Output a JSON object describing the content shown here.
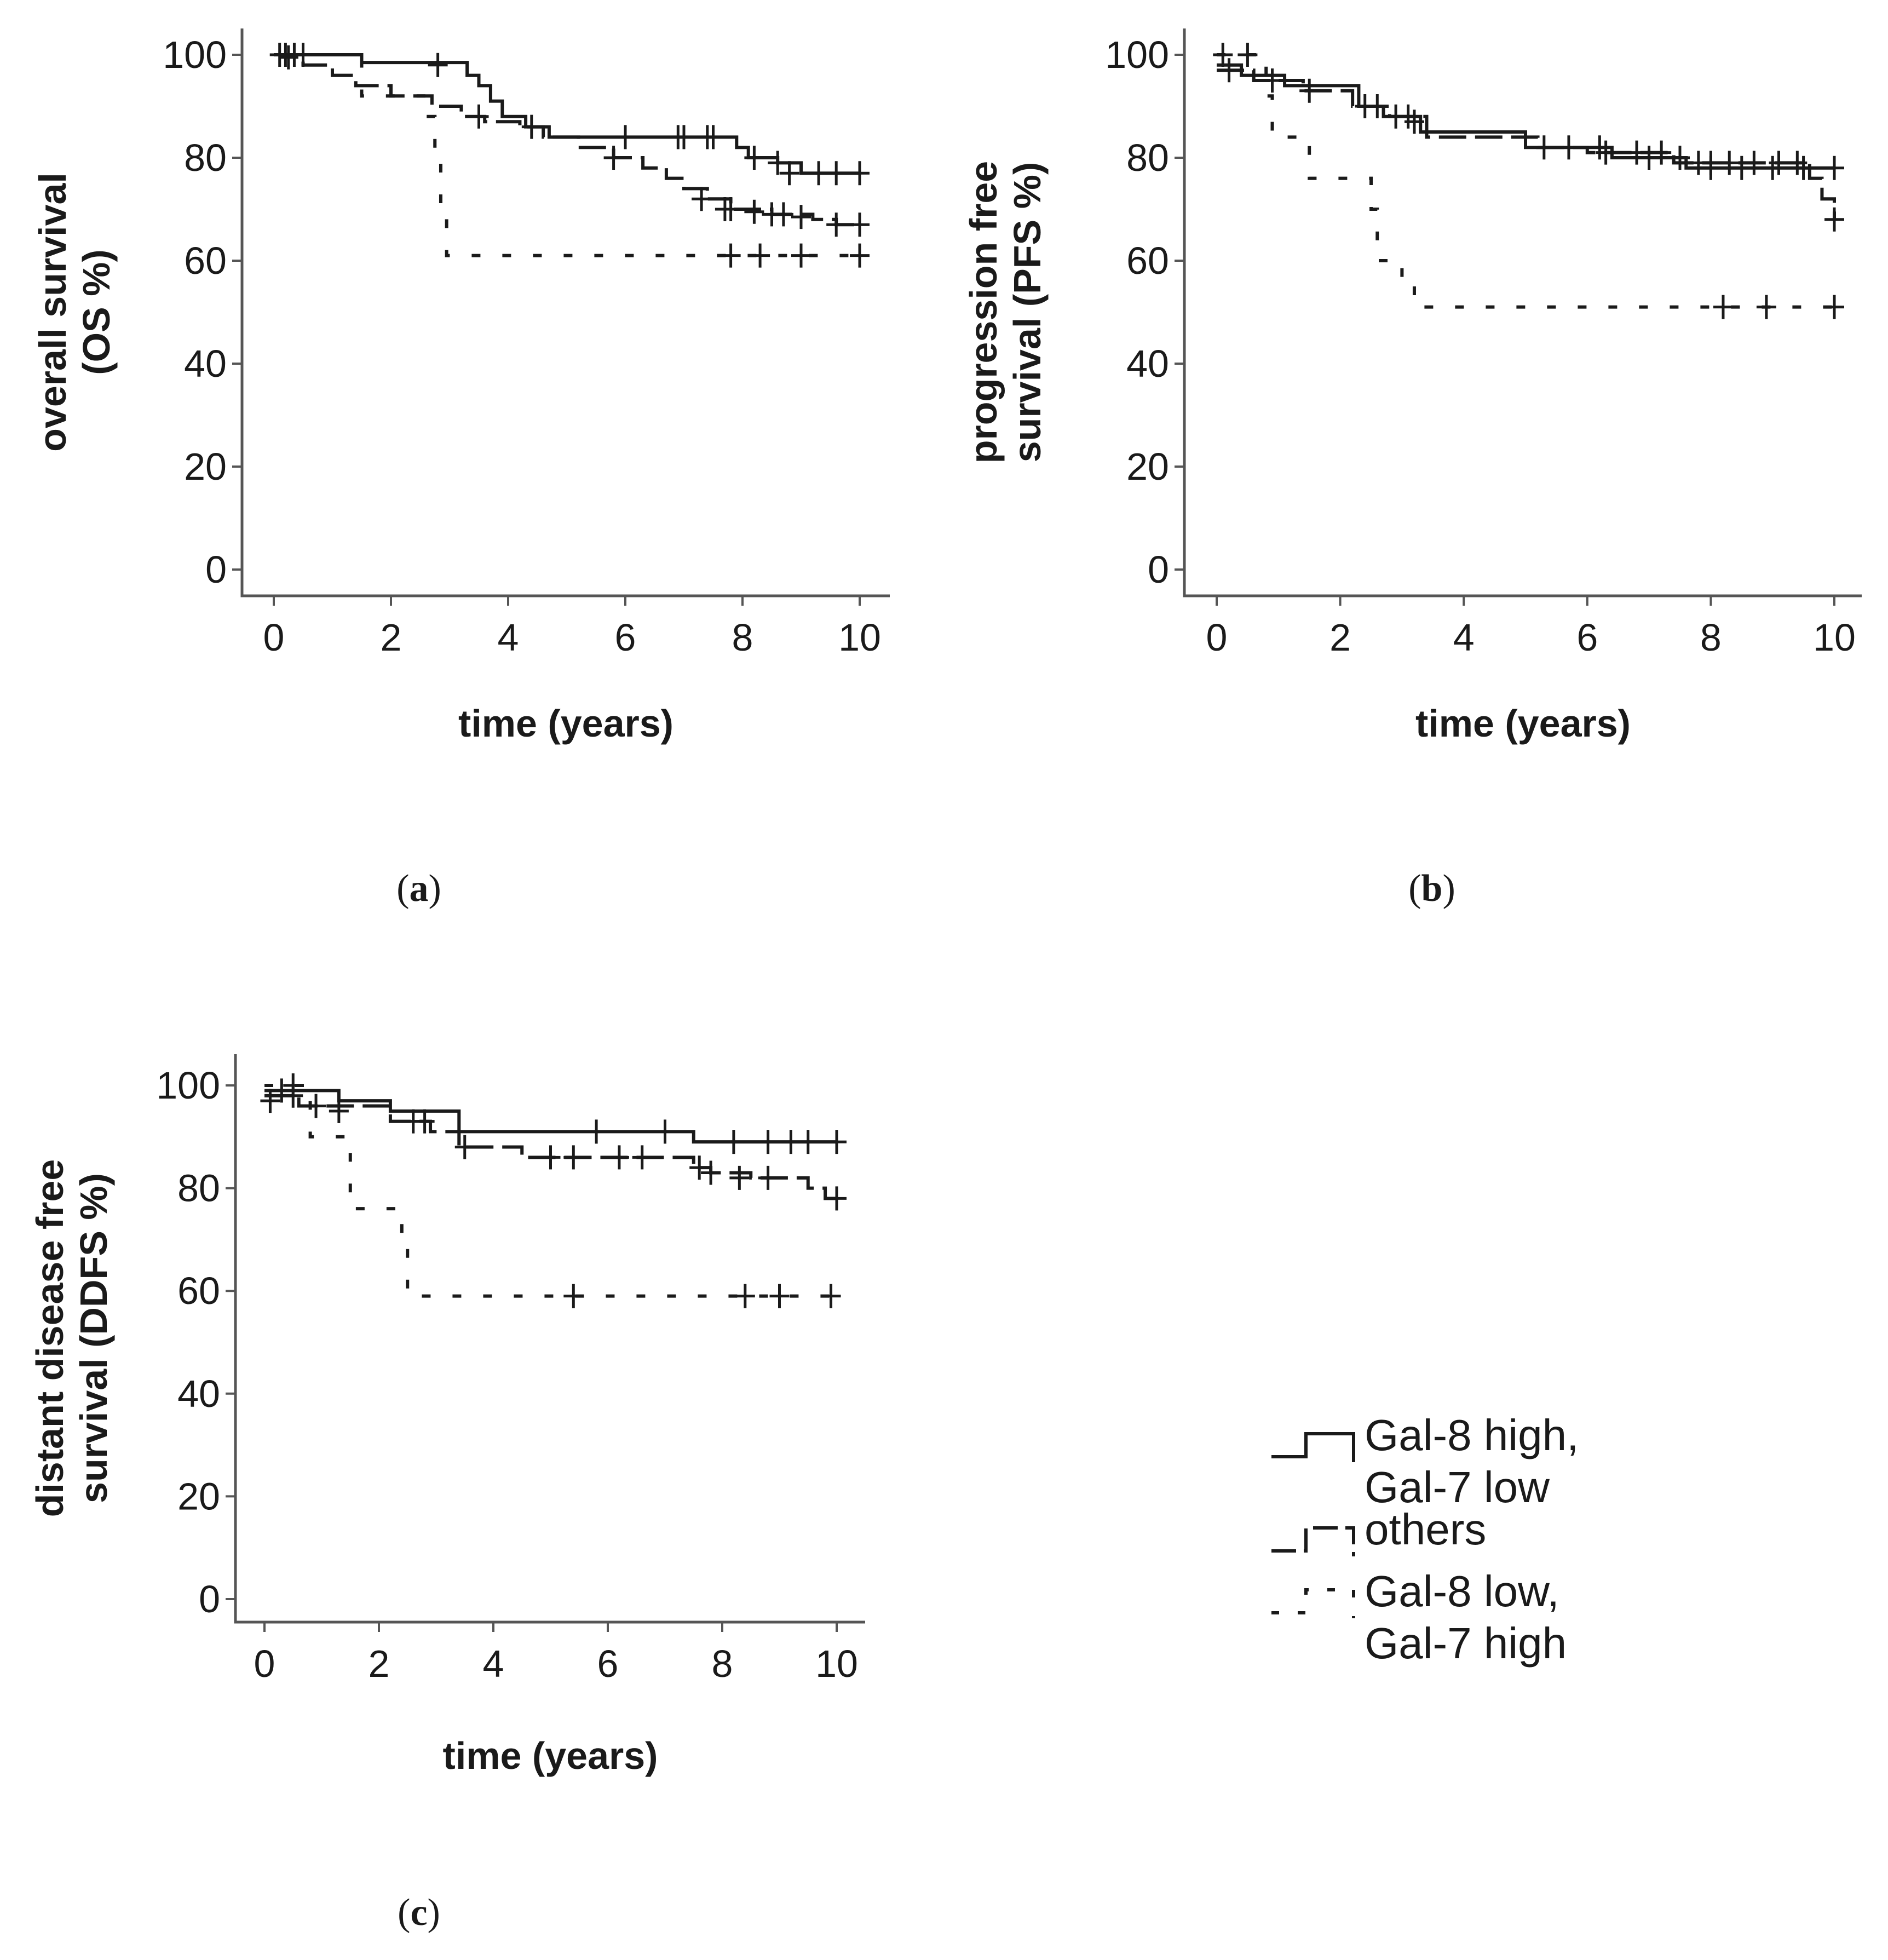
{
  "chart_data": [
    {
      "type": "line",
      "panel_label": "(a)",
      "panel_letter": "a",
      "ylabel_lines": [
        "overall survival",
        "(OS %)"
      ],
      "xlabel": "time (years)",
      "xlim": [
        0,
        10
      ],
      "ylim": [
        0,
        100
      ],
      "x_ticks": [
        "0",
        "2",
        "4",
        "6",
        "8",
        "10"
      ],
      "y_ticks": [
        "0",
        "20",
        "40",
        "60",
        "80",
        "100"
      ],
      "series": [
        {
          "name": "Gal-8 high, Gal-7 low",
          "style": "solid",
          "steps": [
            [
              0,
              100
            ],
            [
              1.5,
              98.5
            ],
            [
              3.3,
              96
            ],
            [
              3.5,
              94
            ],
            [
              3.7,
              91
            ],
            [
              3.9,
              88
            ],
            [
              4.3,
              86
            ],
            [
              4.7,
              84
            ],
            [
              7.9,
              82
            ],
            [
              8.1,
              80
            ],
            [
              8.6,
              79
            ],
            [
              9.0,
              77
            ]
          ],
          "censored": [
            [
              0.2,
              100
            ],
            [
              0.35,
              100
            ],
            [
              0.5,
              100
            ],
            [
              2.8,
              98
            ],
            [
              6.0,
              84
            ],
            [
              6.9,
              84
            ],
            [
              7.0,
              84
            ],
            [
              7.4,
              84
            ],
            [
              7.5,
              84
            ],
            [
              8.2,
              80
            ],
            [
              8.6,
              79
            ],
            [
              8.8,
              77
            ],
            [
              9.3,
              77
            ],
            [
              9.6,
              77
            ],
            [
              10.0,
              77
            ]
          ]
        },
        {
          "name": "others",
          "style": "dashed",
          "steps": [
            [
              0,
              100
            ],
            [
              0.5,
              98
            ],
            [
              1.0,
              96
            ],
            [
              1.4,
              94
            ],
            [
              2.0,
              92
            ],
            [
              2.7,
              90
            ],
            [
              3.2,
              88
            ],
            [
              3.6,
              87
            ],
            [
              4.2,
              86
            ],
            [
              4.6,
              84
            ],
            [
              5.2,
              82
            ],
            [
              5.8,
              80
            ],
            [
              6.3,
              78
            ],
            [
              6.7,
              76
            ],
            [
              7.0,
              74
            ],
            [
              7.4,
              72
            ],
            [
              7.8,
              70
            ],
            [
              8.5,
              69
            ],
            [
              9.2,
              68
            ],
            [
              9.6,
              67
            ]
          ],
          "censored": [
            [
              0.1,
              100
            ],
            [
              0.25,
              99.5
            ],
            [
              3.5,
              88
            ],
            [
              4.4,
              86
            ],
            [
              5.8,
              80
            ],
            [
              7.3,
              72
            ],
            [
              7.7,
              70
            ],
            [
              7.8,
              70
            ],
            [
              8.2,
              69.5
            ],
            [
              8.5,
              69
            ],
            [
              8.7,
              69
            ],
            [
              9.0,
              68.5
            ],
            [
              9.6,
              67
            ],
            [
              10.0,
              67
            ]
          ]
        },
        {
          "name": "Gal-8 low, Gal-7 high",
          "style": "dotted",
          "steps": [
            [
              0,
              100
            ],
            [
              1.5,
              92
            ],
            [
              2.6,
              88
            ],
            [
              2.75,
              80
            ],
            [
              2.85,
              70
            ],
            [
              2.95,
              61
            ]
          ],
          "censored": [
            [
              7.8,
              61
            ],
            [
              8.3,
              61
            ],
            [
              9.0,
              61
            ],
            [
              10.0,
              61
            ]
          ]
        }
      ]
    },
    {
      "type": "line",
      "panel_label": "(b)",
      "panel_letter": "b",
      "ylabel_lines": [
        "progression free",
        "survival (PFS %)"
      ],
      "xlabel": "time (years)",
      "xlim": [
        0,
        10
      ],
      "ylim": [
        0,
        100
      ],
      "x_ticks": [
        "0",
        "2",
        "4",
        "6",
        "8",
        "10"
      ],
      "y_ticks": [
        "0",
        "20",
        "40",
        "60",
        "80",
        "100"
      ],
      "series": [
        {
          "name": "Gal-8 high, Gal-7 low",
          "style": "solid",
          "steps": [
            [
              0,
              98
            ],
            [
              0.4,
              96
            ],
            [
              1.1,
              94
            ],
            [
              2.3,
              90
            ],
            [
              2.7,
              88
            ],
            [
              3.3,
              85
            ],
            [
              5.0,
              82
            ],
            [
              6.4,
              80
            ],
            [
              7.6,
              78
            ]
          ],
          "censored": [
            [
              0.1,
              100
            ],
            [
              2.6,
              90
            ],
            [
              2.9,
              88
            ],
            [
              5.3,
              82
            ],
            [
              6.2,
              82
            ],
            [
              7.0,
              80
            ],
            [
              7.5,
              80
            ],
            [
              8.0,
              78
            ],
            [
              8.5,
              78
            ],
            [
              9.0,
              78
            ],
            [
              9.5,
              78
            ],
            [
              10.0,
              78
            ]
          ]
        },
        {
          "name": "others",
          "style": "dashed",
          "steps": [
            [
              0,
              97
            ],
            [
              0.6,
              95
            ],
            [
              1.4,
              93
            ],
            [
              2.2,
              90
            ],
            [
              2.8,
              88
            ],
            [
              3.4,
              84
            ],
            [
              5.2,
              82
            ],
            [
              6.0,
              81
            ],
            [
              7.4,
              79
            ],
            [
              9.6,
              76
            ],
            [
              9.8,
              72
            ],
            [
              10.0,
              68
            ]
          ],
          "censored": [
            [
              0.2,
              97
            ],
            [
              0.9,
              95
            ],
            [
              1.5,
              93
            ],
            [
              2.4,
              90
            ],
            [
              3.1,
              88
            ],
            [
              3.2,
              87
            ],
            [
              5.7,
              82
            ],
            [
              6.3,
              81
            ],
            [
              6.8,
              81
            ],
            [
              7.2,
              81
            ],
            [
              7.8,
              79
            ],
            [
              8.0,
              79
            ],
            [
              8.3,
              79
            ],
            [
              8.7,
              79
            ],
            [
              9.1,
              79
            ],
            [
              9.4,
              79
            ],
            [
              10.0,
              68
            ]
          ]
        },
        {
          "name": "Gal-8 low, Gal-7 high",
          "style": "dotted",
          "steps": [
            [
              0,
              100
            ],
            [
              0.8,
              92
            ],
            [
              0.9,
              84
            ],
            [
              1.5,
              76
            ],
            [
              2.5,
              70
            ],
            [
              2.6,
              60
            ],
            [
              3.0,
              56
            ],
            [
              3.2,
              51
            ]
          ],
          "censored": [
            [
              0.5,
              100
            ],
            [
              8.2,
              51
            ],
            [
              8.9,
              51
            ],
            [
              10.0,
              51
            ]
          ]
        }
      ]
    },
    {
      "type": "line",
      "panel_label": "(c)",
      "panel_letter": "c",
      "ylabel_lines": [
        "distant disease free",
        "survival (DDFS %)"
      ],
      "xlabel": "time (years)",
      "xlim": [
        0,
        10
      ],
      "ylim": [
        0,
        100
      ],
      "x_ticks": [
        "0",
        "2",
        "4",
        "6",
        "8",
        "10"
      ],
      "y_ticks": [
        "0",
        "20",
        "40",
        "60",
        "80",
        "100"
      ],
      "series": [
        {
          "name": "Gal-8 high, Gal-7 low",
          "style": "solid",
          "steps": [
            [
              0,
              99
            ],
            [
              1.3,
              97
            ],
            [
              2.2,
              95
            ],
            [
              3.4,
              91
            ],
            [
              7.5,
              89
            ]
          ],
          "censored": [
            [
              0.3,
              99
            ],
            [
              0.5,
              98
            ],
            [
              5.8,
              91
            ],
            [
              7.0,
              91
            ],
            [
              8.2,
              89
            ],
            [
              8.8,
              89
            ],
            [
              9.2,
              89
            ],
            [
              9.5,
              89
            ],
            [
              10.0,
              89
            ]
          ]
        },
        {
          "name": "others",
          "style": "dashed",
          "steps": [
            [
              0,
              98
            ],
            [
              0.6,
              96
            ],
            [
              2.2,
              93
            ],
            [
              2.9,
              91
            ],
            [
              3.4,
              88
            ],
            [
              4.5,
              86
            ],
            [
              7.5,
              84
            ],
            [
              7.8,
              83
            ],
            [
              8.5,
              82
            ],
            [
              9.5,
              80
            ],
            [
              9.8,
              78
            ]
          ],
          "censored": [
            [
              0.1,
              97
            ],
            [
              0.9,
              96
            ],
            [
              1.3,
              95
            ],
            [
              2.6,
              93
            ],
            [
              2.8,
              93
            ],
            [
              3.5,
              88
            ],
            [
              5.0,
              86
            ],
            [
              5.4,
              86
            ],
            [
              6.2,
              86
            ],
            [
              6.6,
              86
            ],
            [
              7.6,
              84
            ],
            [
              7.8,
              83
            ],
            [
              8.3,
              82
            ],
            [
              8.8,
              82
            ],
            [
              10.0,
              78
            ]
          ]
        },
        {
          "name": "Gal-8 low, Gal-7 high",
          "style": "dotted",
          "steps": [
            [
              0,
              100
            ],
            [
              0.8,
              90
            ],
            [
              1.5,
              76
            ],
            [
              2.4,
              70
            ],
            [
              2.5,
              59
            ]
          ],
          "censored": [
            [
              0.5,
              100
            ],
            [
              5.4,
              59
            ],
            [
              8.4,
              59
            ],
            [
              9.0,
              59
            ],
            [
              9.9,
              59
            ]
          ]
        }
      ]
    }
  ],
  "legend": {
    "items": [
      {
        "name": "Gal-8 high, Gal-7 low",
        "style": "solid",
        "lines": [
          "Gal-8 high,",
          "Gal-7 low"
        ]
      },
      {
        "name": "others",
        "style": "dashed",
        "lines": [
          "others"
        ]
      },
      {
        "name": "Gal-8 low, Gal-7 high",
        "style": "dotted",
        "lines": [
          "Gal-8 low,",
          "Gal-7 high"
        ]
      }
    ]
  }
}
